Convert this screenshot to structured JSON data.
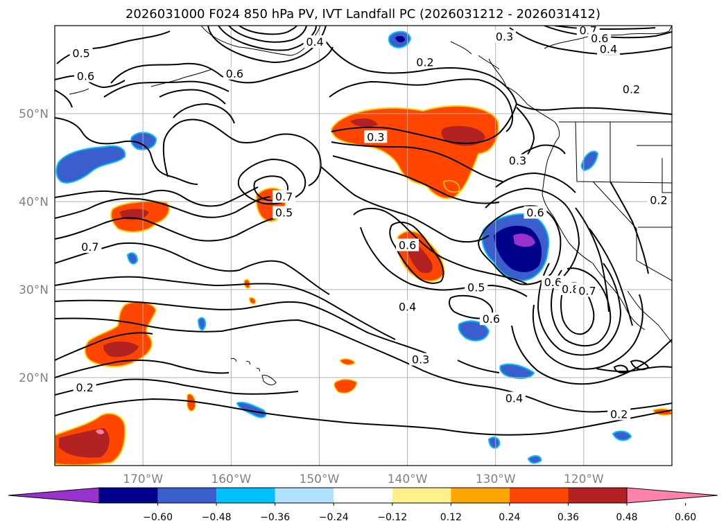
{
  "title": "2026031000 F024 850 hPa PV, IVT Landfall PC (2026031212 - 2026031412)",
  "map": {
    "lon_range": [
      -180,
      -110
    ],
    "lat_range": [
      10,
      60
    ],
    "lon_ticks": [
      {
        "value": -170,
        "label": "170°W"
      },
      {
        "value": -160,
        "label": "160°W"
      },
      {
        "value": -150,
        "label": "150°W"
      },
      {
        "value": -140,
        "label": "140°W"
      },
      {
        "value": -130,
        "label": "130°W"
      },
      {
        "value": -120,
        "label": "120°W"
      }
    ],
    "lat_ticks": [
      {
        "value": 20,
        "label": "20°N"
      },
      {
        "value": 30,
        "label": "30°N"
      },
      {
        "value": 40,
        "label": "40°N"
      },
      {
        "value": 50,
        "label": "50°N"
      }
    ],
    "grid": true
  },
  "contour_labels": [
    {
      "text": "0.5",
      "lon": -177.0,
      "lat": 56.8
    },
    {
      "text": "0.6",
      "lon": -176.5,
      "lat": 54.2
    },
    {
      "text": "0.6",
      "lon": -159.6,
      "lat": 54.5
    },
    {
      "text": "0.4",
      "lon": -150.5,
      "lat": 58.1
    },
    {
      "text": "0.2",
      "lon": -138.0,
      "lat": 55.8
    },
    {
      "text": "0.3",
      "lon": -143.6,
      "lat": 47.3
    },
    {
      "text": "0.7",
      "lon": -154.0,
      "lat": 40.5
    },
    {
      "text": "0.5",
      "lon": -154.0,
      "lat": 38.7
    },
    {
      "text": "0.7",
      "lon": -176.0,
      "lat": 34.8
    },
    {
      "text": "0.6",
      "lon": -140.0,
      "lat": 35.0
    },
    {
      "text": "0.3",
      "lon": -129.0,
      "lat": 58.7
    },
    {
      "text": "0.7",
      "lon": -119.5,
      "lat": 59.4
    },
    {
      "text": "0.6",
      "lon": -118.2,
      "lat": 58.5
    },
    {
      "text": "0.4",
      "lon": -117.2,
      "lat": 57.3
    },
    {
      "text": "0.2",
      "lon": -114.6,
      "lat": 52.7
    },
    {
      "text": "0.3",
      "lon": -127.5,
      "lat": 44.6
    },
    {
      "text": "0.6",
      "lon": -125.5,
      "lat": 38.7
    },
    {
      "text": "0.5",
      "lon": -132.2,
      "lat": 30.2
    },
    {
      "text": "0.6",
      "lon": -130.5,
      "lat": 26.6
    },
    {
      "text": "0.4",
      "lon": -140.0,
      "lat": 28.0
    },
    {
      "text": "0.3",
      "lon": -138.5,
      "lat": 22.0
    },
    {
      "text": "0.6",
      "lon": -123.5,
      "lat": 30.8
    },
    {
      "text": "0.8",
      "lon": -121.5,
      "lat": 30.0
    },
    {
      "text": "0.7",
      "lon": -119.6,
      "lat": 29.8
    },
    {
      "text": "0.2",
      "lon": -111.5,
      "lat": 40.1
    },
    {
      "text": "0.2",
      "lon": -176.6,
      "lat": 18.8
    },
    {
      "text": "0.4",
      "lon": -127.9,
      "lat": 17.6
    },
    {
      "text": "0.2",
      "lon": -116.0,
      "lat": 15.8
    }
  ],
  "colorbar": {
    "colors": [
      "#9932cc",
      "#00008b",
      "#3a5fcd",
      "#00bfff",
      "#b0e2ff",
      "#ffffff",
      "#fff08b",
      "#ffa500",
      "#ff4500",
      "#b22222",
      "#ff82ab"
    ],
    "tick_labels": [
      "−0.60",
      "−0.48",
      "−0.36",
      "−0.24",
      "−0.12",
      "0.12",
      "0.24",
      "0.36",
      "0.48",
      "0.60"
    ]
  }
}
